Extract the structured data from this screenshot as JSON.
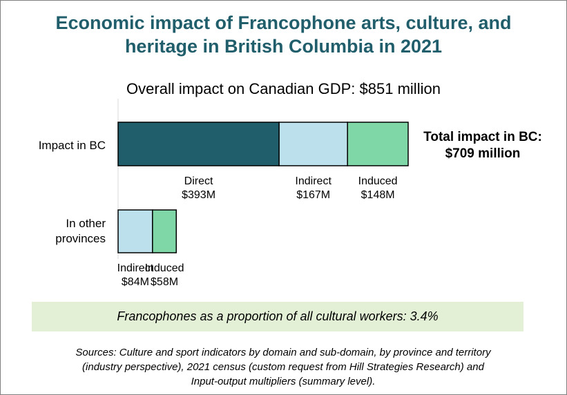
{
  "title_line1": "Economic impact of Francophone arts, culture, and",
  "title_line2": "heritage in British Columbia in 2021",
  "subtitle": "Overall impact on Canadian GDP: $851 million",
  "total_bc_line1": "Total impact in BC:",
  "total_bc_line2": "$709 million",
  "highlight": "Francophones as a proportion of all cultural workers: 3.4%",
  "sources": [
    "Sources: Culture and sport indicators by domain and sub-domain, by province and territory",
    "(industry perspective), 2021 census (custom request from Hill Strategies Research) and",
    "Input-output multipliers (summary level)."
  ],
  "chart_data": {
    "type": "bar",
    "orientation": "horizontal",
    "stacked": true,
    "unit": "$M",
    "categories": [
      "Impact in BC",
      "In other provinces"
    ],
    "category_label_lines": [
      [
        "Impact in BC"
      ],
      [
        "In other",
        "provinces"
      ]
    ],
    "segments": [
      {
        "category": 0,
        "name": "Direct",
        "value": 393,
        "label": "$393M",
        "color": "#215e6c"
      },
      {
        "category": 0,
        "name": "Indirect",
        "value": 167,
        "label": "$167M",
        "color": "#bde1ec"
      },
      {
        "category": 0,
        "name": "Induced",
        "value": 148,
        "label": "$148M",
        "color": "#7fd6a6"
      },
      {
        "category": 1,
        "name": "Indirect",
        "value": 84,
        "label": "$84M",
        "color": "#bde1ec"
      },
      {
        "category": 1,
        "name": "Induced",
        "value": 58,
        "label": "$58M",
        "color": "#7fd6a6"
      }
    ]
  }
}
